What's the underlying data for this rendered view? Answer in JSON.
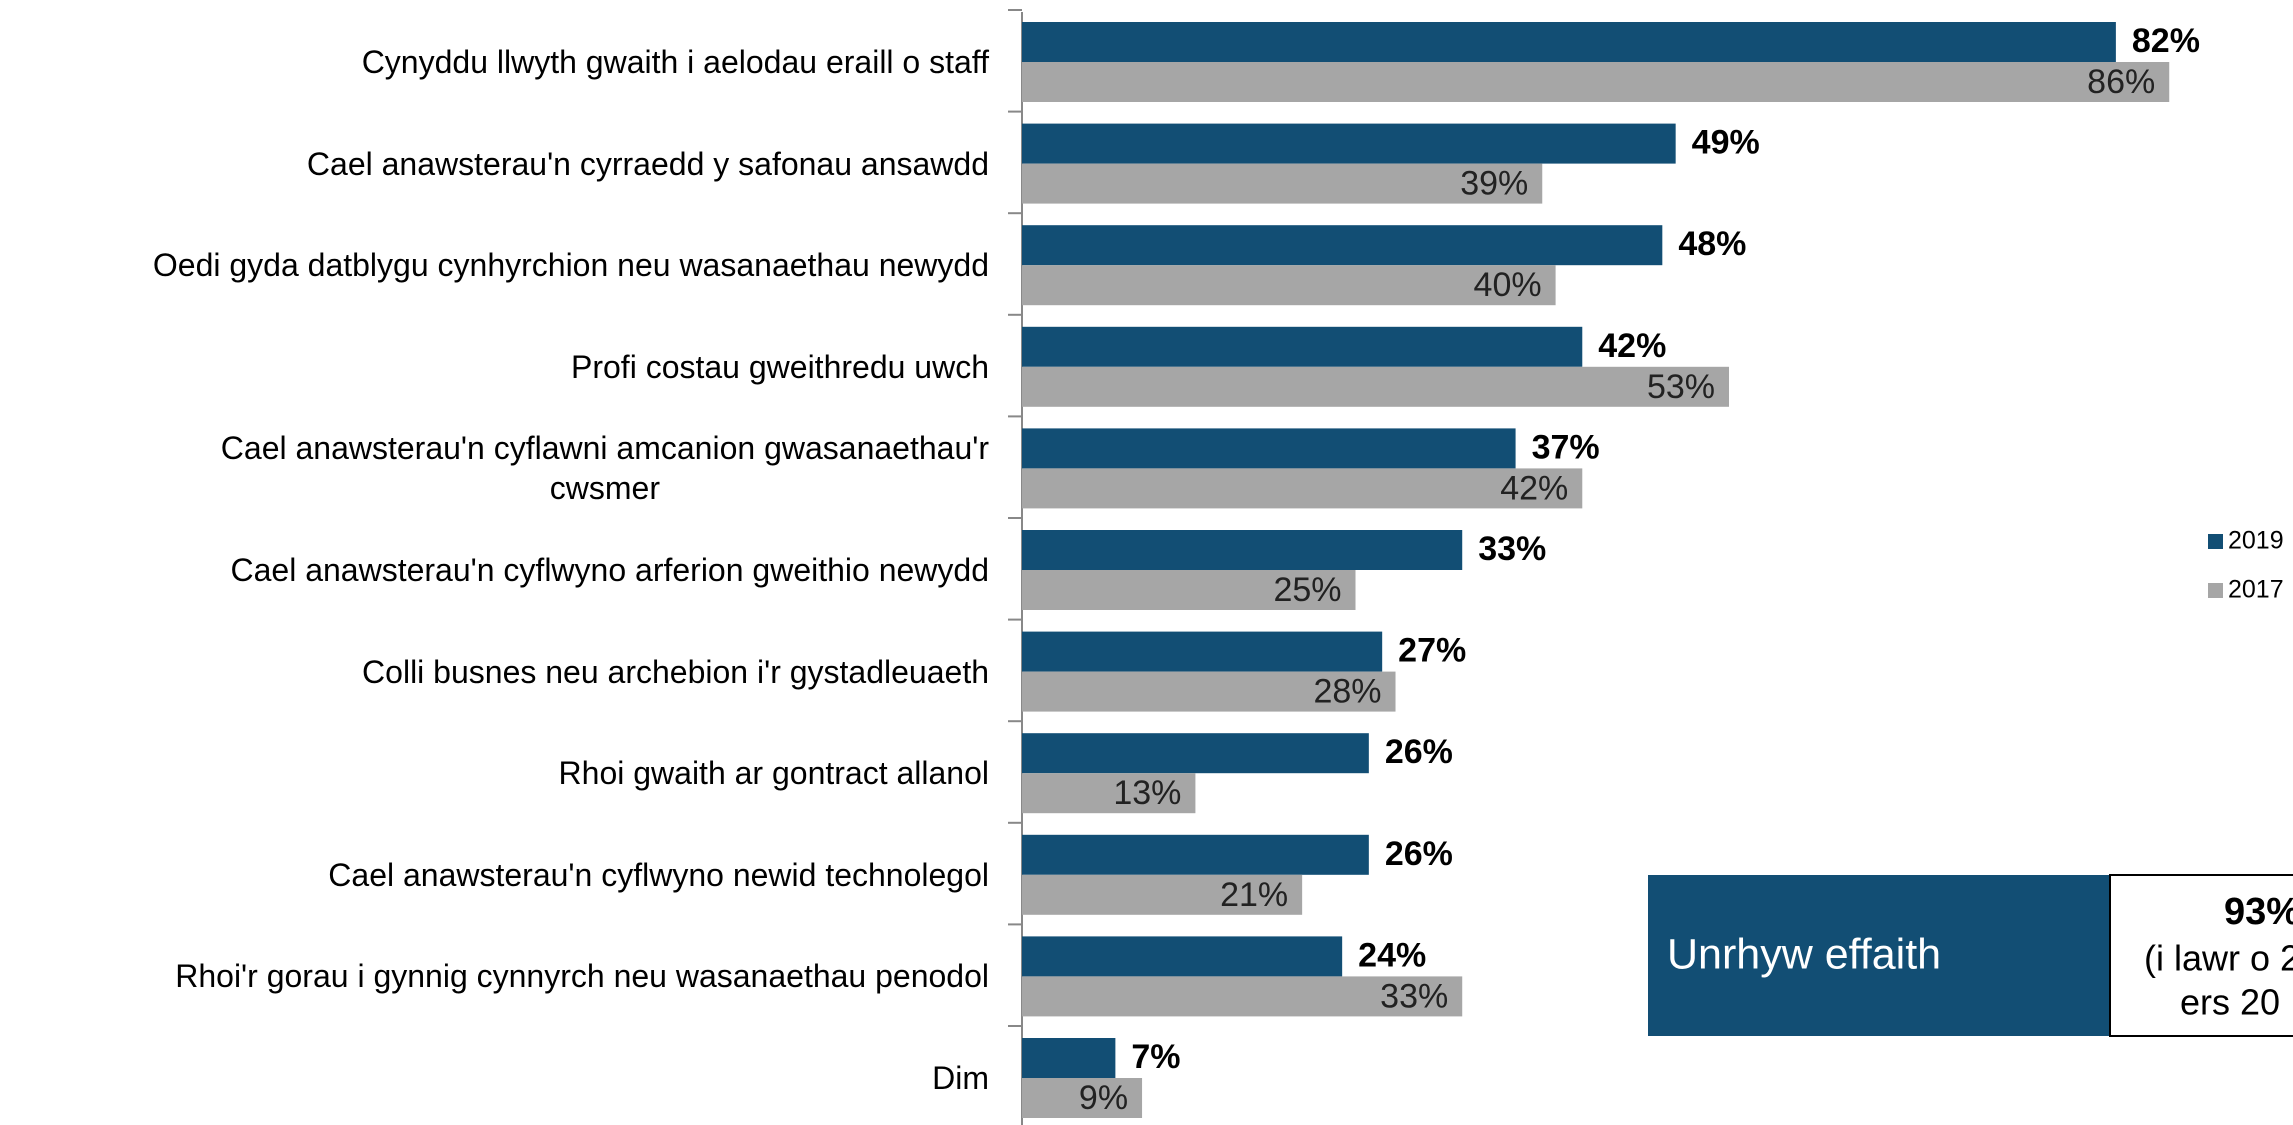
{
  "chart_data": {
    "type": "bar",
    "orientation": "horizontal",
    "categories": [
      "Cynyddu llwyth gwaith i aelodau eraill o staff",
      "Cael anawsterau'n cyrraedd y safonau ansawdd",
      "Oedi gyda datblygu cynhyrchion neu wasanaethau newydd",
      "Profi costau gweithredu uwch",
      "Cael anawsterau'n cyflawni amcanion gwasanaethau'r\ncwsmer",
      "Cael anawsterau'n cyflwyno arferion gweithio newydd",
      "Colli busnes neu archebion i'r gystadleuaeth",
      "Rhoi gwaith ar gontract allanol",
      "Cael anawsterau'n cyflwyno newid technolegol",
      "Rhoi'r gorau i gynnig cynnyrch neu wasanaethau penodol",
      "Dim"
    ],
    "series": [
      {
        "name": "2019",
        "color": "#124e74",
        "values": [
          82,
          49,
          48,
          42,
          37,
          33,
          27,
          26,
          26,
          24,
          7
        ],
        "value_labels": [
          "82%",
          "49%",
          "48%",
          "42%",
          "37%",
          "33%",
          "27%",
          "26%",
          "26%",
          "24%",
          "7%"
        ]
      },
      {
        "name": "2017",
        "color": "#a6a6a6",
        "values": [
          86,
          39,
          40,
          53,
          42,
          25,
          28,
          13,
          21,
          33,
          9
        ],
        "value_labels": [
          "86%",
          "39%",
          "40%",
          "53%",
          "42%",
          "25%",
          "28%",
          "13%",
          "21%",
          "33%",
          "9%"
        ]
      }
    ],
    "xlim": [
      0,
      100
    ],
    "legend": "right",
    "callout": {
      "label": "Unrhyw effaith",
      "value": "93%",
      "note": [
        "(i lawr o 2",
        "ers 20"
      ]
    }
  }
}
